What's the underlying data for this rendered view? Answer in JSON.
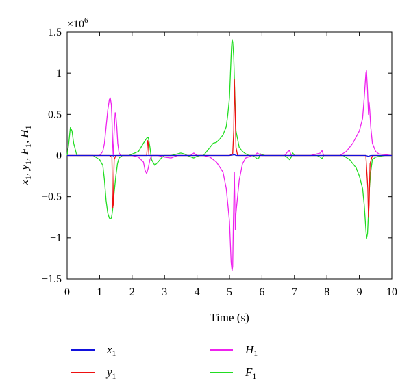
{
  "chart_data": {
    "type": "line",
    "xlabel": "Time (s)",
    "ylabel_parts": [
      "x",
      "1",
      ", y",
      "1",
      ", F",
      "1",
      ", H",
      "1"
    ],
    "y_multiplier": {
      "base": "×10",
      "exp": "6"
    },
    "xlim": [
      0,
      10
    ],
    "ylim": [
      -1.5,
      1.5
    ],
    "xticks": [
      "0",
      "1",
      "2",
      "3",
      "4",
      "5",
      "6",
      "7",
      "8",
      "9",
      "10"
    ],
    "yticks": [
      "−1.5",
      "−1",
      "−0.5",
      "0",
      "0.5",
      "1",
      "1.5"
    ],
    "ytick_values": [
      -1.5,
      -1,
      -0.5,
      0,
      0.5,
      1,
      1.5
    ],
    "legend_position": "bottom",
    "series": [
      {
        "key": "F1",
        "name": "F",
        "sub": "1",
        "color": "#22dd22",
        "x": [
          0,
          0.05,
          0.1,
          0.15,
          0.2,
          0.3,
          0.4,
          0.5,
          0.6,
          0.8,
          1.0,
          1.1,
          1.15,
          1.2,
          1.25,
          1.3,
          1.33,
          1.36,
          1.38,
          1.4,
          1.45,
          1.5,
          1.55,
          1.6,
          1.7,
          1.9,
          2.2,
          2.35,
          2.45,
          2.5,
          2.55,
          2.6,
          2.7,
          2.8,
          2.9,
          3.0,
          3.1,
          3.2,
          3.4,
          3.5,
          3.6,
          3.7,
          3.9,
          4.0,
          4.1,
          4.2,
          4.4,
          4.5,
          4.6,
          4.7,
          4.8,
          4.9,
          4.95,
          5.0,
          5.03,
          5.06,
          5.08,
          5.1,
          5.13,
          5.16,
          5.2,
          5.3,
          5.4,
          5.5,
          5.6,
          5.7,
          5.8,
          5.85,
          5.9,
          5.95,
          6.0,
          6.1,
          6.3,
          6.5,
          6.7,
          6.8,
          6.85,
          6.9,
          6.95,
          7.0,
          7.2,
          7.5,
          7.7,
          7.8,
          7.85,
          7.9,
          8.0,
          8.3,
          8.5,
          8.7,
          8.8,
          8.9,
          9.0,
          9.1,
          9.15,
          9.2,
          9.22,
          9.25,
          9.28,
          9.3,
          9.35,
          9.4,
          9.5,
          9.6,
          9.8,
          10.0
        ],
        "y": [
          0.0,
          0.15,
          0.34,
          0.3,
          0.15,
          0.0,
          0.0,
          0.0,
          0.0,
          0.0,
          -0.05,
          -0.12,
          -0.3,
          -0.55,
          -0.7,
          -0.76,
          -0.77,
          -0.76,
          -0.72,
          -0.66,
          -0.45,
          -0.25,
          -0.1,
          -0.03,
          0.0,
          0.0,
          0.05,
          0.15,
          0.21,
          0.22,
          0.1,
          -0.05,
          -0.12,
          -0.08,
          -0.03,
          0.0,
          0.0,
          0.0,
          0.02,
          0.03,
          0.02,
          0.0,
          -0.03,
          -0.01,
          0.0,
          0.0,
          0.1,
          0.15,
          0.16,
          0.2,
          0.25,
          0.35,
          0.5,
          0.7,
          1.0,
          1.3,
          1.41,
          1.38,
          1.2,
          0.8,
          0.3,
          0.1,
          0.05,
          0.02,
          0.0,
          0.0,
          -0.02,
          -0.04,
          -0.03,
          0.02,
          0.01,
          0.0,
          0.0,
          0.0,
          0.0,
          -0.03,
          -0.05,
          -0.02,
          0.03,
          0.0,
          0.0,
          0.0,
          0.0,
          -0.02,
          -0.04,
          0.0,
          0.0,
          0.0,
          0.0,
          -0.05,
          -0.1,
          -0.15,
          -0.25,
          -0.4,
          -0.6,
          -0.9,
          -1.01,
          -0.95,
          -0.7,
          -0.45,
          -0.2,
          -0.05,
          -0.02,
          -0.01,
          0.0,
          0.0
        ]
      },
      {
        "key": "H1",
        "name": "H",
        "sub": "1",
        "color": "#ee22ee",
        "x": [
          0,
          0.2,
          0.5,
          0.8,
          1.0,
          1.1,
          1.15,
          1.2,
          1.25,
          1.3,
          1.33,
          1.36,
          1.38,
          1.4,
          1.42,
          1.45,
          1.48,
          1.5,
          1.53,
          1.56,
          1.6,
          1.65,
          1.7,
          1.8,
          2.0,
          2.2,
          2.35,
          2.4,
          2.45,
          2.5,
          2.55,
          2.6,
          2.8,
          3.0,
          3.2,
          3.4,
          3.6,
          3.8,
          3.9,
          4.0,
          4.2,
          4.4,
          4.6,
          4.8,
          4.9,
          5.0,
          5.05,
          5.08,
          5.1,
          5.12,
          5.15,
          5.18,
          5.2,
          5.3,
          5.4,
          5.5,
          5.7,
          5.8,
          5.85,
          5.9,
          6.0,
          6.3,
          6.7,
          6.8,
          6.85,
          6.9,
          7.0,
          7.5,
          7.8,
          7.85,
          7.9,
          8.0,
          8.4,
          8.6,
          8.8,
          9.0,
          9.1,
          9.15,
          9.2,
          9.22,
          9.25,
          9.28,
          9.3,
          9.32,
          9.35,
          9.4,
          9.5,
          9.6,
          10.0
        ],
        "y": [
          0.0,
          0.0,
          0.0,
          0.0,
          0.0,
          0.05,
          0.15,
          0.35,
          0.55,
          0.68,
          0.7,
          0.62,
          0.45,
          0.15,
          0.0,
          0.3,
          0.52,
          0.5,
          0.35,
          0.15,
          0.03,
          0.0,
          0.0,
          0.0,
          0.0,
          -0.02,
          -0.08,
          -0.18,
          -0.22,
          -0.15,
          -0.05,
          0.0,
          0.0,
          -0.02,
          -0.03,
          0.0,
          0.0,
          0.0,
          0.03,
          0.0,
          0.0,
          -0.02,
          -0.08,
          -0.2,
          -0.4,
          -0.8,
          -1.3,
          -1.4,
          -1.35,
          -0.8,
          -0.2,
          -0.9,
          -0.7,
          -0.3,
          -0.1,
          -0.03,
          0.0,
          0.0,
          0.03,
          0.02,
          0.0,
          0.0,
          0.0,
          0.05,
          0.06,
          0.0,
          0.0,
          0.0,
          0.03,
          0.06,
          0.0,
          0.0,
          0.0,
          0.05,
          0.15,
          0.3,
          0.45,
          0.7,
          1.0,
          1.03,
          0.8,
          0.5,
          0.65,
          0.55,
          0.35,
          0.15,
          0.05,
          0.02,
          0.0
        ]
      },
      {
        "key": "y1",
        "name": "y",
        "sub": "1",
        "color": "#ee1111",
        "x": [
          0,
          1.0,
          1.3,
          1.38,
          1.4,
          1.42,
          1.45,
          1.5,
          2.0,
          2.45,
          2.48,
          2.5,
          2.52,
          2.55,
          3.0,
          4.0,
          4.8,
          5.0,
          5.1,
          5.13,
          5.15,
          5.17,
          5.2,
          5.25,
          5.3,
          5.5,
          6.0,
          7.0,
          8.0,
          9.0,
          9.2,
          9.26,
          9.28,
          9.3,
          9.33,
          9.4,
          10.0
        ],
        "y": [
          0.0,
          0.0,
          0.0,
          -0.02,
          -0.64,
          -0.6,
          -0.05,
          0.0,
          0.0,
          0.0,
          0.18,
          0.15,
          0.0,
          0.0,
          0.0,
          0.0,
          0.0,
          0.0,
          0.02,
          0.3,
          0.93,
          0.6,
          0.1,
          0.0,
          0.0,
          0.0,
          0.0,
          0.0,
          0.0,
          0.0,
          0.0,
          -0.4,
          -0.75,
          -0.6,
          -0.1,
          0.0,
          0.0
        ]
      },
      {
        "key": "x1",
        "name": "x",
        "sub": "1",
        "color": "#1111dd",
        "x": [
          0,
          1.4,
          1.42,
          1.45,
          5.0,
          5.1,
          5.15,
          5.2,
          9.2,
          9.28,
          9.35,
          10.0
        ],
        "y": [
          0.0,
          0.0,
          -0.005,
          0.0,
          0.0,
          0.005,
          0.01,
          0.0,
          0.0,
          -0.01,
          0.0,
          0.0
        ]
      }
    ],
    "legend": [
      {
        "key": "x1",
        "name": "x",
        "sub": "1",
        "color": "#1111dd"
      },
      {
        "key": "y1",
        "name": "y",
        "sub": "1",
        "color": "#ee1111"
      },
      {
        "key": "H1",
        "name": "H",
        "sub": "1",
        "color": "#ee22ee"
      },
      {
        "key": "F1",
        "name": "F",
        "sub": "1",
        "color": "#22dd22"
      }
    ]
  }
}
